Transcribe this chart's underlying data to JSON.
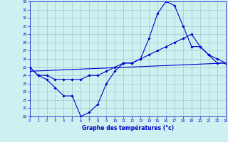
{
  "xlabel": "Graphe des températures (°c)",
  "bg_color": "#cff0f0",
  "line_color": "#0000cc",
  "grid_color": "#99cccc",
  "ylim": [
    19,
    33
  ],
  "xlim": [
    0,
    23
  ],
  "yticks": [
    19,
    20,
    21,
    22,
    23,
    24,
    25,
    26,
    27,
    28,
    29,
    30,
    31,
    32,
    33
  ],
  "xticks": [
    0,
    1,
    2,
    3,
    4,
    5,
    6,
    7,
    8,
    9,
    10,
    11,
    12,
    13,
    14,
    15,
    16,
    17,
    18,
    19,
    20,
    21,
    22,
    23
  ],
  "line1_x": [
    0,
    1,
    2,
    3,
    4,
    5,
    6,
    7,
    8,
    9,
    10,
    11,
    12,
    13,
    14,
    15,
    16,
    17,
    18,
    19,
    20,
    21,
    22,
    23
  ],
  "line1_y": [
    25.0,
    24.0,
    23.5,
    22.5,
    21.5,
    21.5,
    19.0,
    19.5,
    20.5,
    23.0,
    24.5,
    25.5,
    25.5,
    26.0,
    28.5,
    31.5,
    33.0,
    32.5,
    30.0,
    27.5,
    27.5,
    26.5,
    26.0,
    25.5
  ],
  "line2_x": [
    0,
    1,
    2,
    3,
    4,
    5,
    6,
    7,
    8,
    9,
    10,
    11,
    12,
    13,
    14,
    15,
    16,
    17,
    18,
    19,
    20,
    21,
    22,
    23
  ],
  "line2_y": [
    25.0,
    24.0,
    24.0,
    23.5,
    23.5,
    23.5,
    23.5,
    24.0,
    24.0,
    24.5,
    25.0,
    25.5,
    25.5,
    26.0,
    26.5,
    27.0,
    27.5,
    28.0,
    28.5,
    29.0,
    27.5,
    26.5,
    25.5,
    25.5
  ],
  "line3_x": [
    0,
    23
  ],
  "line3_y": [
    24.5,
    25.5
  ]
}
